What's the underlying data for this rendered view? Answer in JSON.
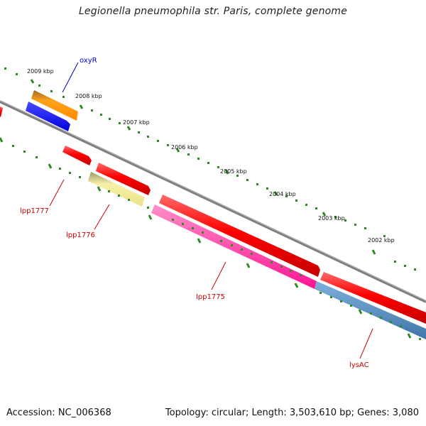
{
  "title": "Legionella pneumophila str. Paris, complete genome",
  "scale_labels": [
    "2009 kbp",
    "2008 kbp",
    "2007 kbp",
    "2006 kbp",
    "2005 kbp",
    "2004 kbp",
    "2003 kbp",
    "2002 kbp"
  ],
  "gene_labels": [
    {
      "name": "oxyR",
      "color": "#0000cc"
    },
    {
      "name": "lpp1777",
      "color": "#cc0000"
    },
    {
      "name": "lpp1776",
      "color": "#cc0000"
    },
    {
      "name": "lpp1775",
      "color": "#cc0000"
    },
    {
      "name": "lysAC",
      "color": "#cc0000"
    }
  ],
  "colors": {
    "backbone": "#808080",
    "ticks": "#2e8b22",
    "orange": "#ff9900",
    "blue": "#1010ee",
    "red": "#ff0000",
    "yellow": "#f4ec9a",
    "pink": "#ff2a9c",
    "steel": "#4f86b8"
  },
  "footer": {
    "accession": "Accession: NC_006368",
    "summary": "Topology: circular; Length: 3,503,610 bp; Genes: 3,080"
  }
}
